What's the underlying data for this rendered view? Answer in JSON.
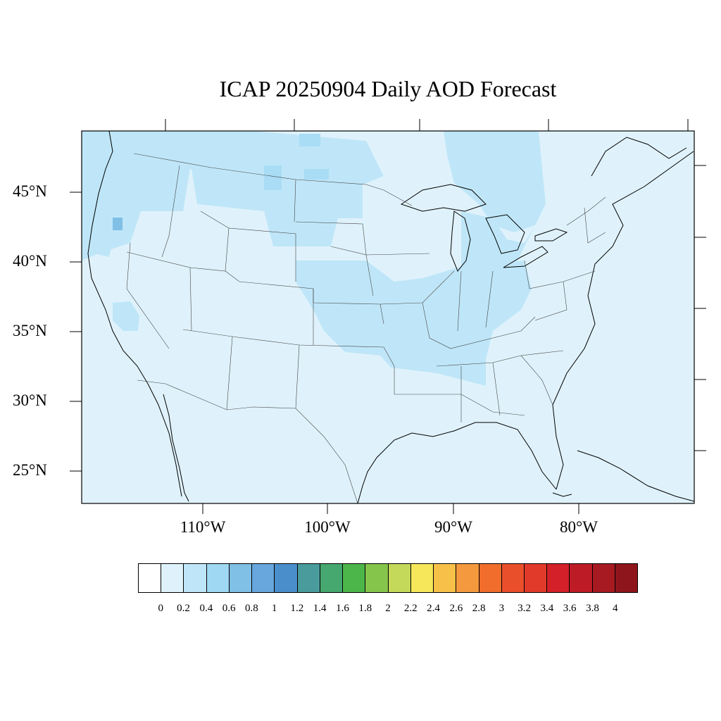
{
  "title": "ICAP 20250904 Daily AOD Forecast",
  "map": {
    "region": "Contiguous United States",
    "projection": "lambert-conformal",
    "lat_labels": [
      "45°N",
      "40°N",
      "35°N",
      "30°N",
      "25°N"
    ],
    "lon_labels": [
      "110°W",
      "100°W",
      "90°W",
      "80°W"
    ],
    "background_color": "#dff2fb",
    "aod_field_summary": "Mostly 0–0.2 everywhere; 0.2–0.4 over the Pacific Northwest, northern Plains, central Mississippi/Ohio valleys and southern Canada; small 0.6–0.8 spot over western Oregon."
  },
  "colorbar": {
    "labels": [
      "0",
      "0.2",
      "0.4",
      "0.6",
      "0.8",
      "1",
      "1.2",
      "1.4",
      "1.6",
      "1.8",
      "2",
      "2.2",
      "2.4",
      "2.6",
      "2.8",
      "3",
      "3.2",
      "3.4",
      "3.6",
      "3.8",
      "4"
    ],
    "colors": [
      "#ffffff",
      "#dff2fb",
      "#bfe6f8",
      "#9fd8f3",
      "#80bfe6",
      "#67a7dd",
      "#4a8fcc",
      "#4a9c9c",
      "#46a86e",
      "#4cb64a",
      "#86c54c",
      "#c4d85a",
      "#f6e75a",
      "#f7c149",
      "#f4993e",
      "#f06d2c",
      "#ea4f2c",
      "#e23a2a",
      "#d42028",
      "#bd1c26",
      "#a81a22",
      "#8e151b"
    ]
  }
}
